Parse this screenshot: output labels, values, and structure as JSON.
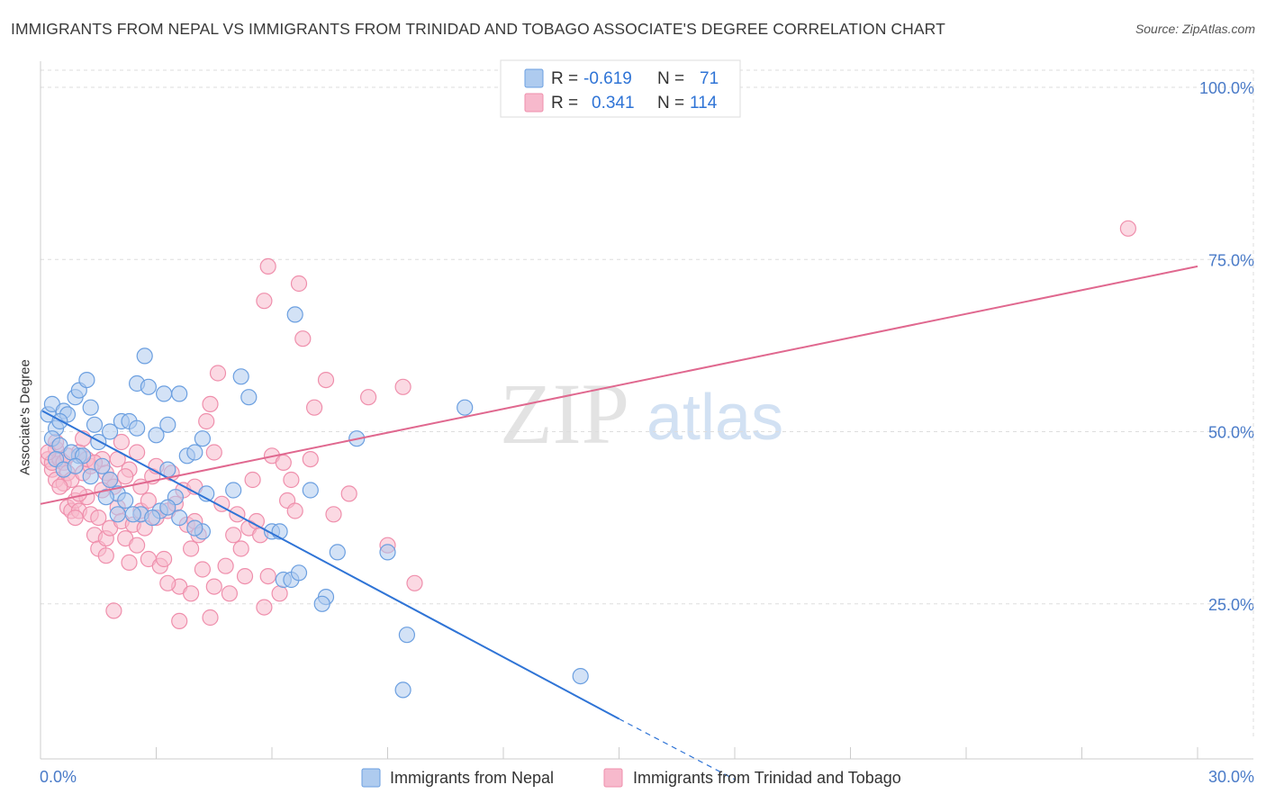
{
  "title": "IMMIGRANTS FROM NEPAL VS IMMIGRANTS FROM TRINIDAD AND TOBAGO ASSOCIATE'S DEGREE CORRELATION CHART",
  "source": "Source: ZipAtlas.com",
  "watermark": {
    "zip": "ZIP",
    "atlas": "atlas"
  },
  "legend": {
    "nepal": {
      "r_label": "R =",
      "r_value": "-0.619",
      "n_label": "N =",
      "n_value": "71"
    },
    "trinidad": {
      "r_label": "R =",
      "r_value": "0.341",
      "n_label": "N =",
      "n_value": "114"
    }
  },
  "bottom_legend": {
    "nepal": "Immigrants from Nepal",
    "trinidad": "Immigrants from Trinidad and Tobago"
  },
  "colors": {
    "nepal_fill": "#aecbef",
    "nepal_stroke": "#6b9fe0",
    "nepal_line": "#2f74d6",
    "trinidad_fill": "#f7b9cc",
    "trinidad_stroke": "#ef8fac",
    "trinidad_line": "#e0688f",
    "axis_text": "#4a7bc8",
    "grid": "#dddddd"
  },
  "chart_data": {
    "type": "scatter",
    "title": "IMMIGRANTS FROM NEPAL VS IMMIGRANTS FROM TRINIDAD AND TOBAGO ASSOCIATE'S DEGREE CORRELATION CHART",
    "xlabel": "",
    "ylabel": "Associate's Degree",
    "xlim": [
      0,
      30
    ],
    "ylim": [
      0,
      105
    ],
    "x_tick_labels": [
      "0.0%",
      "30.0%"
    ],
    "y_ticks": [
      25,
      50,
      75,
      100
    ],
    "y_tick_labels": [
      "25.0%",
      "50.0%",
      "75.0%",
      "100.0%"
    ],
    "grid": true,
    "legend_position": "top-center",
    "series": [
      {
        "name": "Immigrants from Nepal",
        "R": -0.619,
        "N": 71,
        "trend": {
          "x0": 0.05,
          "y0": 53.0,
          "x1": 15.0,
          "y1": 8.3,
          "dash_to_x": 18.0,
          "dash_to_y": -0.5
        },
        "points": [
          [
            0.2,
            52.5
          ],
          [
            0.3,
            54.0
          ],
          [
            0.4,
            50.5
          ],
          [
            0.3,
            49.0
          ],
          [
            0.5,
            48.0
          ],
          [
            0.6,
            53.0
          ],
          [
            0.7,
            52.5
          ],
          [
            0.5,
            51.5
          ],
          [
            0.9,
            55.0
          ],
          [
            1.0,
            56.0
          ],
          [
            1.2,
            57.5
          ],
          [
            1.0,
            46.5
          ],
          [
            0.8,
            47.0
          ],
          [
            1.1,
            46.5
          ],
          [
            1.4,
            51.0
          ],
          [
            1.3,
            53.5
          ],
          [
            1.5,
            48.5
          ],
          [
            1.6,
            45.0
          ],
          [
            1.8,
            50.0
          ],
          [
            1.8,
            43.0
          ],
          [
            2.0,
            41.0
          ],
          [
            2.1,
            51.5
          ],
          [
            2.3,
            51.5
          ],
          [
            2.5,
            50.5
          ],
          [
            1.7,
            40.5
          ],
          [
            2.2,
            40.0
          ],
          [
            2.5,
            57.0
          ],
          [
            2.7,
            61.0
          ],
          [
            2.8,
            56.5
          ],
          [
            3.0,
            49.5
          ],
          [
            3.3,
            51.0
          ],
          [
            3.2,
            55.5
          ],
          [
            3.6,
            55.5
          ],
          [
            3.3,
            44.5
          ],
          [
            3.1,
            38.5
          ],
          [
            3.5,
            40.5
          ],
          [
            3.6,
            37.5
          ],
          [
            3.8,
            46.5
          ],
          [
            4.0,
            47.0
          ],
          [
            4.2,
            49.0
          ],
          [
            4.3,
            41.0
          ],
          [
            4.2,
            35.5
          ],
          [
            5.0,
            41.5
          ],
          [
            4.0,
            36.0
          ],
          [
            3.3,
            39.0
          ],
          [
            2.6,
            38.0
          ],
          [
            2.0,
            38.0
          ],
          [
            5.2,
            58.0
          ],
          [
            5.4,
            55.0
          ],
          [
            6.0,
            35.5
          ],
          [
            6.2,
            35.5
          ],
          [
            6.3,
            28.5
          ],
          [
            6.5,
            28.5
          ],
          [
            6.7,
            29.5
          ],
          [
            7.0,
            41.5
          ],
          [
            7.4,
            26.0
          ],
          [
            7.3,
            25.0
          ],
          [
            7.7,
            32.5
          ],
          [
            8.2,
            49.0
          ],
          [
            6.6,
            67.0
          ],
          [
            9.0,
            32.5
          ],
          [
            9.5,
            20.5
          ],
          [
            9.4,
            12.5
          ],
          [
            11.0,
            53.5
          ],
          [
            14.0,
            14.5
          ],
          [
            0.4,
            46.0
          ],
          [
            0.6,
            44.5
          ],
          [
            0.9,
            45.0
          ],
          [
            1.3,
            43.5
          ],
          [
            2.4,
            38.0
          ],
          [
            2.9,
            37.5
          ]
        ]
      },
      {
        "name": "Immigrants from Trinidad and Tobago",
        "R": 0.341,
        "N": 114,
        "trend": {
          "x0": 0.0,
          "y0": 39.5,
          "x1": 30.0,
          "y1": 74.0
        },
        "points": [
          [
            0.2,
            46.0
          ],
          [
            0.3,
            44.5
          ],
          [
            0.3,
            45.5
          ],
          [
            0.4,
            47.5
          ],
          [
            0.5,
            46.0
          ],
          [
            0.4,
            43.0
          ],
          [
            0.6,
            45.5
          ],
          [
            0.6,
            42.5
          ],
          [
            0.7,
            44.0
          ],
          [
            0.8,
            43.0
          ],
          [
            0.7,
            39.0
          ],
          [
            0.8,
            38.5
          ],
          [
            0.9,
            40.0
          ],
          [
            1.0,
            38.5
          ],
          [
            1.0,
            47.0
          ],
          [
            1.1,
            49.0
          ],
          [
            1.1,
            44.0
          ],
          [
            1.2,
            40.5
          ],
          [
            1.3,
            45.0
          ],
          [
            1.3,
            38.0
          ],
          [
            1.4,
            35.0
          ],
          [
            1.5,
            37.5
          ],
          [
            1.5,
            33.0
          ],
          [
            1.6,
            46.0
          ],
          [
            1.7,
            44.0
          ],
          [
            1.8,
            43.0
          ],
          [
            1.7,
            34.5
          ],
          [
            1.7,
            32.0
          ],
          [
            1.8,
            36.0
          ],
          [
            1.9,
            42.0
          ],
          [
            2.0,
            46.0
          ],
          [
            2.0,
            39.0
          ],
          [
            2.1,
            37.0
          ],
          [
            2.2,
            34.5
          ],
          [
            2.3,
            44.5
          ],
          [
            2.3,
            31.0
          ],
          [
            2.4,
            36.5
          ],
          [
            2.5,
            33.5
          ],
          [
            2.6,
            42.0
          ],
          [
            2.6,
            38.5
          ],
          [
            2.7,
            36.0
          ],
          [
            2.8,
            31.5
          ],
          [
            2.9,
            43.5
          ],
          [
            3.0,
            37.5
          ],
          [
            3.1,
            30.5
          ],
          [
            3.2,
            31.5
          ],
          [
            3.3,
            38.5
          ],
          [
            3.4,
            44.0
          ],
          [
            3.5,
            39.5
          ],
          [
            3.6,
            27.5
          ],
          [
            3.7,
            41.5
          ],
          [
            3.8,
            36.5
          ],
          [
            3.9,
            33.0
          ],
          [
            4.0,
            42.0
          ],
          [
            4.0,
            37.0
          ],
          [
            4.1,
            35.0
          ],
          [
            4.2,
            30.0
          ],
          [
            4.3,
            51.5
          ],
          [
            4.4,
            54.0
          ],
          [
            4.5,
            47.0
          ],
          [
            4.6,
            58.5
          ],
          [
            4.7,
            39.5
          ],
          [
            4.8,
            30.5
          ],
          [
            4.9,
            26.5
          ],
          [
            5.0,
            35.0
          ],
          [
            5.1,
            38.0
          ],
          [
            5.2,
            33.0
          ],
          [
            5.3,
            29.0
          ],
          [
            5.4,
            36.0
          ],
          [
            5.5,
            43.0
          ],
          [
            5.6,
            37.0
          ],
          [
            5.7,
            35.0
          ],
          [
            5.8,
            24.5
          ],
          [
            5.9,
            29.0
          ],
          [
            6.0,
            46.5
          ],
          [
            5.8,
            69.0
          ],
          [
            6.3,
            45.5
          ],
          [
            6.4,
            40.0
          ],
          [
            6.5,
            43.0
          ],
          [
            6.6,
            38.5
          ],
          [
            6.8,
            63.5
          ],
          [
            6.7,
            71.5
          ],
          [
            7.1,
            53.5
          ],
          [
            7.4,
            57.5
          ],
          [
            8.5,
            55.0
          ],
          [
            9.0,
            33.5
          ],
          [
            9.4,
            56.5
          ],
          [
            9.7,
            28.0
          ],
          [
            5.9,
            74.0
          ],
          [
            7.0,
            46.0
          ],
          [
            8.0,
            41.0
          ],
          [
            0.4,
            48.5
          ],
          [
            0.5,
            42.0
          ],
          [
            0.9,
            37.5
          ],
          [
            1.2,
            46.0
          ],
          [
            1.6,
            41.5
          ],
          [
            2.1,
            48.5
          ],
          [
            2.5,
            47.0
          ],
          [
            2.8,
            40.0
          ],
          [
            3.3,
            28.0
          ],
          [
            3.9,
            26.5
          ],
          [
            4.5,
            27.5
          ],
          [
            1.0,
            41.0
          ],
          [
            0.2,
            47.0
          ],
          [
            1.9,
            24.0
          ],
          [
            3.6,
            22.5
          ],
          [
            4.4,
            23.0
          ],
          [
            6.2,
            26.5
          ],
          [
            7.6,
            38.0
          ],
          [
            28.2,
            79.5
          ],
          [
            0.7,
            46.5
          ],
          [
            1.4,
            45.5
          ],
          [
            2.2,
            43.5
          ],
          [
            3.0,
            45.0
          ]
        ]
      }
    ]
  }
}
